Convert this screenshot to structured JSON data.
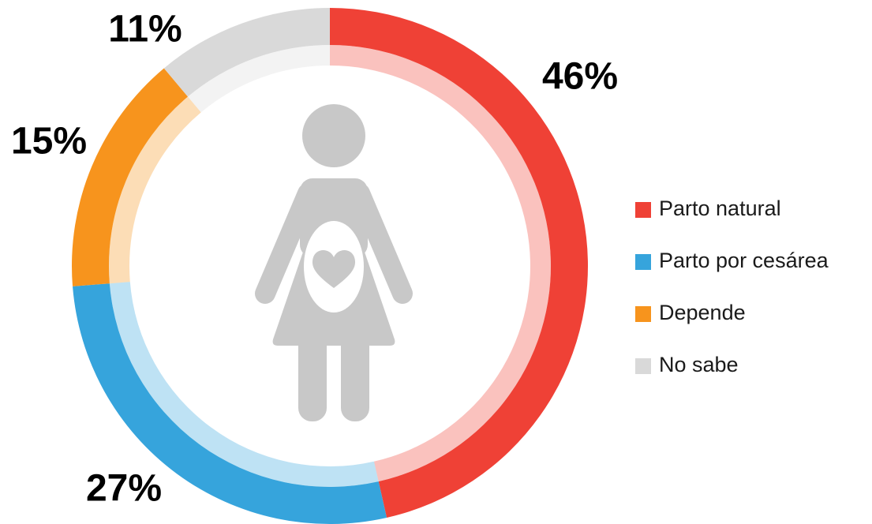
{
  "chart_data": {
    "type": "donut",
    "categories": [
      "Parto natural",
      "Parto por cesárea",
      "Depende",
      "No sabe"
    ],
    "values": [
      46,
      27,
      15,
      11
    ],
    "value_labels": [
      "46%",
      "27%",
      "15%",
      "11%"
    ],
    "colors": [
      "#ef4136",
      "#36a4dc",
      "#f7941d",
      "#d9d9d9"
    ],
    "legend": "right"
  }
}
